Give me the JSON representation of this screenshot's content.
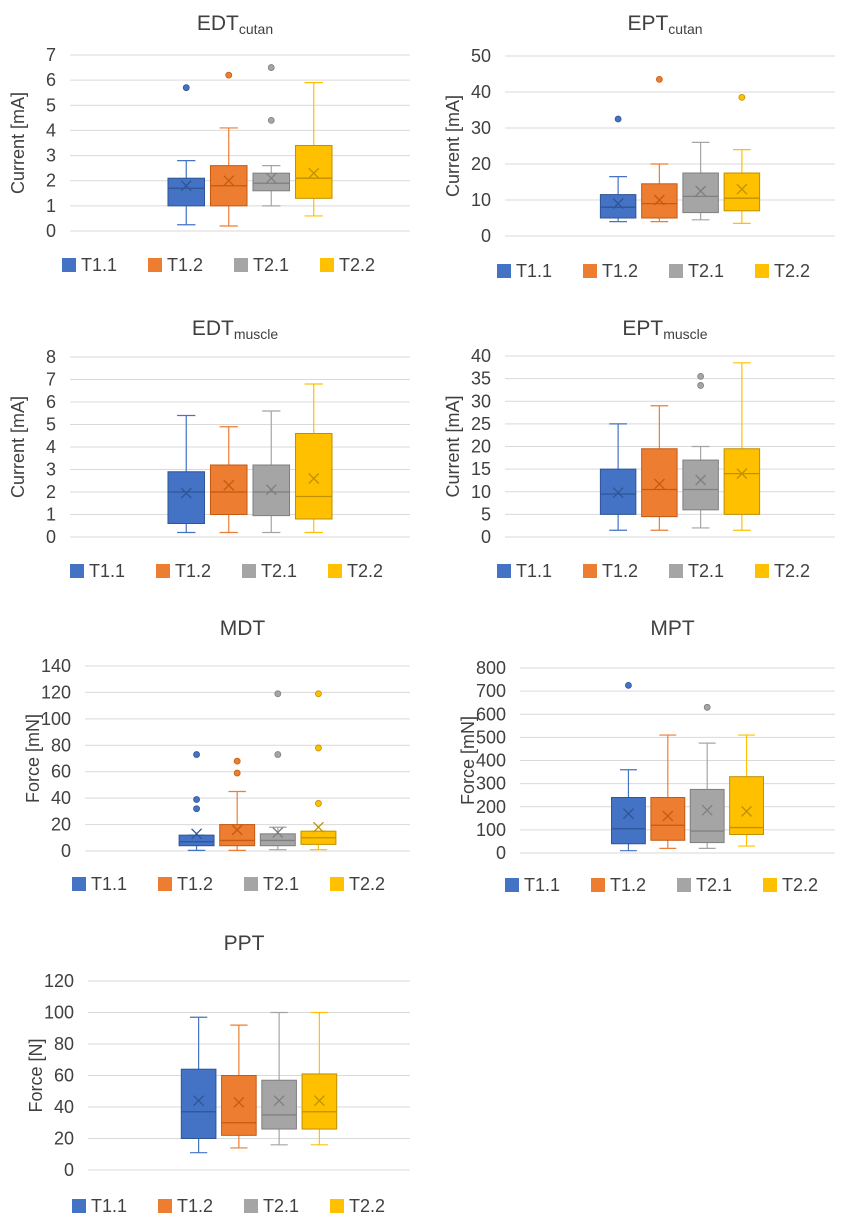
{
  "legend_labels": [
    "T1.1",
    "T1.2",
    "T2.1",
    "T2.2"
  ],
  "series_colors": [
    "#4472c4",
    "#ed7d31",
    "#a5a5a5",
    "#ffc000"
  ],
  "series_dark": [
    "#2f5597",
    "#c55a11",
    "#7f7f7f",
    "#bf9000"
  ],
  "chart_data": [
    {
      "type": "box",
      "title": "EDT",
      "title_sub": "cutan",
      "ylabel": "Current [mA]",
      "ylim": [
        0,
        7
      ],
      "ytick_step": 1,
      "yticks": [
        "0",
        "1",
        "2",
        "3",
        "4",
        "5",
        "6",
        "7"
      ],
      "categories": [
        "T1.1",
        "T1.2",
        "T2.1",
        "T2.2"
      ],
      "series": [
        {
          "name": "T1.1",
          "min": 0.25,
          "q1": 1.0,
          "median": 1.7,
          "q3": 2.1,
          "max": 2.8,
          "mean": 1.8,
          "outliers": [
            5.7
          ]
        },
        {
          "name": "T1.2",
          "min": 0.2,
          "q1": 1.0,
          "median": 1.8,
          "q3": 2.6,
          "max": 4.1,
          "mean": 2.0,
          "outliers": [
            6.2
          ]
        },
        {
          "name": "T2.1",
          "min": 1.0,
          "q1": 1.6,
          "median": 1.9,
          "q3": 2.3,
          "max": 2.6,
          "mean": 2.1,
          "outliers": [
            4.4,
            6.5
          ]
        },
        {
          "name": "T2.2",
          "min": 0.6,
          "q1": 1.3,
          "median": 2.1,
          "q3": 3.4,
          "max": 5.9,
          "mean": 2.3,
          "outliers": []
        }
      ]
    },
    {
      "type": "box",
      "title": "EPT",
      "title_sub": "cutan",
      "ylabel": "Current [mA]",
      "ylim": [
        0,
        50
      ],
      "ytick_step": 10,
      "yticks": [
        "0",
        "10",
        "20",
        "30",
        "40",
        "50"
      ],
      "categories": [
        "T1.1",
        "T1.2",
        "T2.1",
        "T2.2"
      ],
      "series": [
        {
          "name": "T1.1",
          "min": 4,
          "q1": 5,
          "median": 8,
          "q3": 11.5,
          "max": 16.5,
          "mean": 9,
          "outliers": [
            32.5
          ]
        },
        {
          "name": "T1.2",
          "min": 4,
          "q1": 5,
          "median": 9,
          "q3": 14.5,
          "max": 20,
          "mean": 10,
          "outliers": [
            43.5
          ]
        },
        {
          "name": "T2.1",
          "min": 4.5,
          "q1": 6.5,
          "median": 11,
          "q3": 17.5,
          "max": 26,
          "mean": 12.5,
          "outliers": []
        },
        {
          "name": "T2.2",
          "min": 3.5,
          "q1": 7,
          "median": 10.5,
          "q3": 17.5,
          "max": 24,
          "mean": 13,
          "outliers": [
            38.5
          ]
        }
      ]
    },
    {
      "type": "box",
      "title": "EDT",
      "title_sub": "muscle",
      "ylabel": "Current [mA]",
      "ylim": [
        0,
        8
      ],
      "ytick_step": 1,
      "yticks": [
        "0",
        "1",
        "2",
        "3",
        "4",
        "5",
        "6",
        "7",
        "8"
      ],
      "categories": [
        "T1.1",
        "T1.2",
        "T2.1",
        "T2.2"
      ],
      "series": [
        {
          "name": "T1.1",
          "min": 0.2,
          "q1": 0.6,
          "median": 2.0,
          "q3": 2.9,
          "max": 5.4,
          "mean": 1.95,
          "outliers": []
        },
        {
          "name": "T1.2",
          "min": 0.2,
          "q1": 1.0,
          "median": 2.0,
          "q3": 3.2,
          "max": 4.9,
          "mean": 2.3,
          "outliers": []
        },
        {
          "name": "T2.1",
          "min": 0.2,
          "q1": 0.95,
          "median": 2.0,
          "q3": 3.2,
          "max": 5.6,
          "mean": 2.1,
          "outliers": []
        },
        {
          "name": "T2.2",
          "min": 0.2,
          "q1": 0.8,
          "median": 1.8,
          "q3": 4.6,
          "max": 6.8,
          "mean": 2.6,
          "outliers": []
        }
      ]
    },
    {
      "type": "box",
      "title": "EPT",
      "title_sub": "muscle",
      "ylabel": "Current [mA]",
      "ylim": [
        0,
        40
      ],
      "ytick_step": 5,
      "yticks": [
        "0",
        "5",
        "10",
        "15",
        "20",
        "25",
        "30",
        "35",
        "40"
      ],
      "categories": [
        "T1.1",
        "T1.2",
        "T2.1",
        "T2.2"
      ],
      "series": [
        {
          "name": "T1.1",
          "min": 1.5,
          "q1": 5,
          "median": 9.5,
          "q3": 15,
          "max": 25,
          "mean": 9.8,
          "outliers": []
        },
        {
          "name": "T1.2",
          "min": 1.5,
          "q1": 4.5,
          "median": 10.5,
          "q3": 19.5,
          "max": 29,
          "mean": 11.7,
          "outliers": []
        },
        {
          "name": "T2.1",
          "min": 2,
          "q1": 6,
          "median": 10.5,
          "q3": 17,
          "max": 20,
          "mean": 12.6,
          "outliers": [
            33.5,
            35.5
          ]
        },
        {
          "name": "T2.2",
          "min": 1.5,
          "q1": 5,
          "median": 14,
          "q3": 19.5,
          "max": 38.5,
          "mean": 14,
          "outliers": []
        }
      ]
    },
    {
      "type": "box",
      "title": "MDT",
      "title_sub": "",
      "ylabel": "Force [mN]",
      "ylim": [
        0,
        140
      ],
      "ytick_step": 20,
      "yticks": [
        "0",
        "20",
        "40",
        "60",
        "80",
        "100",
        "120",
        "140"
      ],
      "categories": [
        "T1.1",
        "T1.2",
        "T2.1",
        "T2.2"
      ],
      "series": [
        {
          "name": "T1.1",
          "min": 0.5,
          "q1": 4,
          "median": 7,
          "q3": 12,
          "max": 12,
          "mean": 13,
          "outliers": [
            32,
            39,
            73
          ]
        },
        {
          "name": "T1.2",
          "min": 0.5,
          "q1": 4,
          "median": 8,
          "q3": 20,
          "max": 45,
          "mean": 16,
          "outliers": [
            59,
            68
          ]
        },
        {
          "name": "T2.1",
          "min": 1,
          "q1": 4,
          "median": 8,
          "q3": 13,
          "max": 18,
          "mean": 14,
          "outliers": [
            73,
            119
          ]
        },
        {
          "name": "T2.2",
          "min": 1,
          "q1": 5,
          "median": 10,
          "q3": 15,
          "max": 15,
          "mean": 18,
          "outliers": [
            36,
            78,
            119
          ]
        }
      ]
    },
    {
      "type": "box",
      "title": "MPT",
      "title_sub": "",
      "ylabel": "Force [mN]",
      "ylim": [
        0,
        800
      ],
      "ytick_step": 100,
      "yticks": [
        "0",
        "100",
        "200",
        "300",
        "400",
        "500",
        "600",
        "700",
        "800"
      ],
      "categories": [
        "T1.1",
        "T1.2",
        "T2.1",
        "T2.2"
      ],
      "series": [
        {
          "name": "T1.1",
          "min": 10,
          "q1": 40,
          "median": 105,
          "q3": 240,
          "max": 360,
          "mean": 170,
          "outliers": [
            725
          ]
        },
        {
          "name": "T1.2",
          "min": 20,
          "q1": 55,
          "median": 120,
          "q3": 240,
          "max": 510,
          "mean": 160,
          "outliers": []
        },
        {
          "name": "T2.1",
          "min": 20,
          "q1": 45,
          "median": 95,
          "q3": 275,
          "max": 475,
          "mean": 185,
          "outliers": [
            630
          ]
        },
        {
          "name": "T2.2",
          "min": 30,
          "q1": 80,
          "median": 110,
          "q3": 330,
          "max": 510,
          "mean": 180,
          "outliers": []
        }
      ]
    },
    {
      "type": "box",
      "title": "PPT",
      "title_sub": "",
      "ylabel": "Force [N]",
      "ylim": [
        0,
        120
      ],
      "ytick_step": 20,
      "yticks": [
        "0",
        "20",
        "40",
        "60",
        "80",
        "100",
        "120"
      ],
      "categories": [
        "T1.1",
        "T1.2",
        "T2.1",
        "T2.2"
      ],
      "series": [
        {
          "name": "T1.1",
          "min": 11,
          "q1": 20,
          "median": 37,
          "q3": 64,
          "max": 97,
          "mean": 44,
          "outliers": []
        },
        {
          "name": "T1.2",
          "min": 14,
          "q1": 22,
          "median": 30,
          "q3": 60,
          "max": 92,
          "mean": 43,
          "outliers": []
        },
        {
          "name": "T2.1",
          "min": 16,
          "q1": 26,
          "median": 35,
          "q3": 57,
          "max": 100,
          "mean": 44,
          "outliers": []
        },
        {
          "name": "T2.2",
          "min": 16,
          "q1": 26,
          "median": 37,
          "q3": 61,
          "max": 100,
          "mean": 44,
          "outliers": []
        }
      ]
    }
  ]
}
